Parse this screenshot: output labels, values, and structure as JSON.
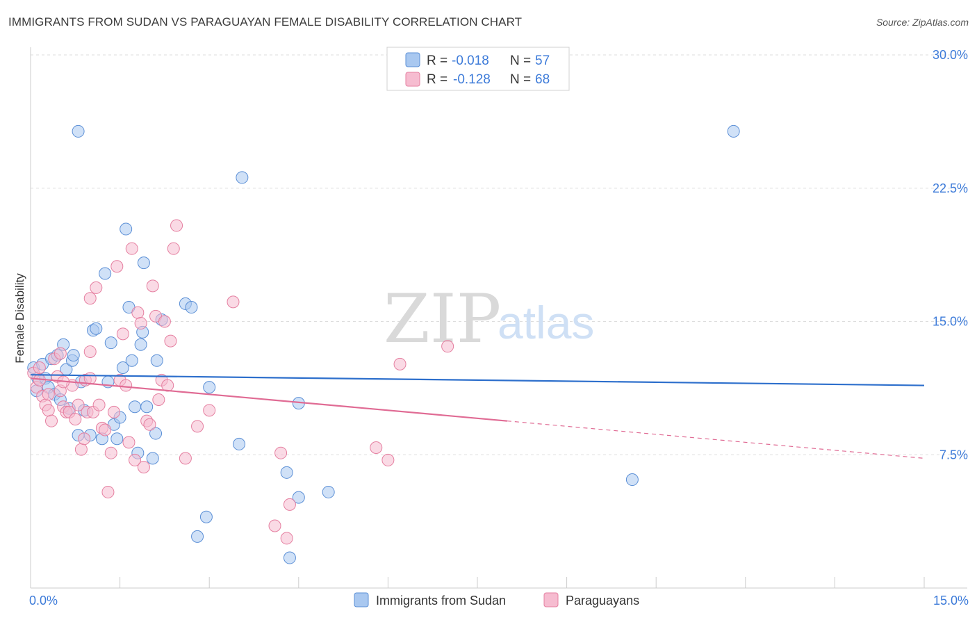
{
  "title": "IMMIGRANTS FROM SUDAN VS PARAGUAYAN FEMALE DISABILITY CORRELATION CHART",
  "source": "Source: ZipAtlas.com",
  "watermark": {
    "zip": "ZIP",
    "atlas": "atlas"
  },
  "legend": {
    "rows": [
      {
        "r_label": "R = ",
        "r_value": "-0.018",
        "n_label": "N = ",
        "n_value": "57",
        "color": "#a9c8f0",
        "stroke": "#5b8fd6"
      },
      {
        "r_label": "R = ",
        "r_value": "-0.128",
        "n_label": "N = ",
        "n_value": "68",
        "color": "#f6bcd0",
        "stroke": "#e57fa0"
      }
    ]
  },
  "bottom_legend": [
    {
      "label": "Immigrants from Sudan",
      "color": "#a9c8f0",
      "stroke": "#5b8fd6"
    },
    {
      "label": "Paraguayans",
      "color": "#f6bcd0",
      "stroke": "#e57fa0"
    }
  ],
  "chart_data": {
    "type": "scatter",
    "ylabel": "Female Disability",
    "xlim": [
      0,
      15
    ],
    "ylim": [
      0,
      30
    ],
    "x_tick_labels": [
      "0.0%",
      "15.0%"
    ],
    "y_ticks": [
      {
        "value": 7.5,
        "label": "7.5%"
      },
      {
        "value": 15,
        "label": "15.0%"
      },
      {
        "value": 22.5,
        "label": "22.5%"
      },
      {
        "value": 30,
        "label": "30.0%"
      }
    ],
    "series": [
      {
        "name": "Immigrants from Sudan",
        "color": "#a9c8f0",
        "stroke": "#5b8fd6",
        "trend": {
          "x0": 0,
          "y0": 12.0,
          "x1": 15,
          "y1": 11.4,
          "solid_until": 15,
          "color": "#2d6fcc"
        },
        "points": [
          [
            0.05,
            12.4
          ],
          [
            0.1,
            11.1
          ],
          [
            0.12,
            11.8
          ],
          [
            0.2,
            12.6
          ],
          [
            0.25,
            11.8
          ],
          [
            0.3,
            11.3
          ],
          [
            0.35,
            12.9
          ],
          [
            0.4,
            10.9
          ],
          [
            0.45,
            13.1
          ],
          [
            0.5,
            10.6
          ],
          [
            0.55,
            13.7
          ],
          [
            0.6,
            12.3
          ],
          [
            0.65,
            10.1
          ],
          [
            0.7,
            12.8
          ],
          [
            0.72,
            13.1
          ],
          [
            0.8,
            8.6
          ],
          [
            0.85,
            11.6
          ],
          [
            0.9,
            10.0
          ],
          [
            1.0,
            8.6
          ],
          [
            1.05,
            14.5
          ],
          [
            1.1,
            14.6
          ],
          [
            1.2,
            8.4
          ],
          [
            1.25,
            17.7
          ],
          [
            1.3,
            11.6
          ],
          [
            1.35,
            13.8
          ],
          [
            1.4,
            9.2
          ],
          [
            1.45,
            8.4
          ],
          [
            1.5,
            9.6
          ],
          [
            1.55,
            12.4
          ],
          [
            1.6,
            20.2
          ],
          [
            1.65,
            15.8
          ],
          [
            1.7,
            12.8
          ],
          [
            1.75,
            10.2
          ],
          [
            1.8,
            7.6
          ],
          [
            1.85,
            13.7
          ],
          [
            1.88,
            14.4
          ],
          [
            1.9,
            18.3
          ],
          [
            1.95,
            10.2
          ],
          [
            2.05,
            7.3
          ],
          [
            2.1,
            8.7
          ],
          [
            2.12,
            12.8
          ],
          [
            2.2,
            15.1
          ],
          [
            2.6,
            16.0
          ],
          [
            2.7,
            15.8
          ],
          [
            2.8,
            2.9
          ],
          [
            2.95,
            4.0
          ],
          [
            3.0,
            11.3
          ],
          [
            3.5,
            8.1
          ],
          [
            3.55,
            23.1
          ],
          [
            4.3,
            6.5
          ],
          [
            4.35,
            1.7
          ],
          [
            4.5,
            5.1
          ],
          [
            4.5,
            10.4
          ],
          [
            5.0,
            5.4
          ],
          [
            0.8,
            25.7
          ],
          [
            10.1,
            6.1
          ],
          [
            11.8,
            25.7
          ]
        ]
      },
      {
        "name": "Paraguayans",
        "color": "#f6bcd0",
        "stroke": "#e57fa0",
        "trend": {
          "x0": 0,
          "y0": 11.8,
          "x1": 15,
          "y1": 7.3,
          "solid_until": 8.0,
          "color": "#e06b94"
        },
        "points": [
          [
            0.05,
            12.1
          ],
          [
            0.1,
            11.3
          ],
          [
            0.15,
            11.7
          ],
          [
            0.2,
            10.8
          ],
          [
            0.25,
            10.3
          ],
          [
            0.3,
            10.0
          ],
          [
            0.35,
            9.4
          ],
          [
            0.4,
            12.9
          ],
          [
            0.45,
            11.9
          ],
          [
            0.5,
            11.1
          ],
          [
            0.55,
            10.2
          ],
          [
            0.6,
            9.9
          ],
          [
            0.65,
            9.9
          ],
          [
            0.7,
            11.4
          ],
          [
            0.75,
            9.5
          ],
          [
            0.8,
            10.3
          ],
          [
            0.85,
            7.8
          ],
          [
            0.9,
            8.4
          ],
          [
            0.92,
            11.7
          ],
          [
            0.95,
            9.9
          ],
          [
            1.0,
            16.3
          ],
          [
            1.05,
            9.9
          ],
          [
            1.1,
            16.9
          ],
          [
            1.15,
            10.3
          ],
          [
            1.2,
            9.0
          ],
          [
            1.25,
            8.9
          ],
          [
            1.3,
            5.4
          ],
          [
            1.35,
            7.6
          ],
          [
            1.4,
            9.9
          ],
          [
            1.45,
            18.1
          ],
          [
            1.5,
            11.7
          ],
          [
            1.55,
            14.3
          ],
          [
            1.6,
            11.4
          ],
          [
            1.65,
            8.2
          ],
          [
            1.7,
            19.1
          ],
          [
            1.75,
            7.2
          ],
          [
            1.8,
            15.5
          ],
          [
            1.85,
            14.9
          ],
          [
            1.9,
            6.8
          ],
          [
            1.95,
            9.4
          ],
          [
            2.0,
            9.2
          ],
          [
            2.05,
            17.0
          ],
          [
            2.1,
            15.3
          ],
          [
            2.15,
            10.6
          ],
          [
            2.2,
            11.7
          ],
          [
            2.25,
            15.0
          ],
          [
            2.3,
            11.4
          ],
          [
            2.35,
            13.9
          ],
          [
            2.4,
            19.1
          ],
          [
            2.45,
            20.4
          ],
          [
            2.6,
            7.3
          ],
          [
            2.8,
            9.1
          ],
          [
            3.0,
            10.0
          ],
          [
            3.4,
            16.1
          ],
          [
            4.1,
            3.5
          ],
          [
            4.2,
            7.6
          ],
          [
            4.3,
            2.8
          ],
          [
            4.35,
            4.7
          ],
          [
            5.8,
            7.9
          ],
          [
            6.0,
            7.2
          ],
          [
            6.2,
            12.6
          ],
          [
            7.0,
            13.6
          ],
          [
            0.5,
            13.2
          ],
          [
            0.55,
            11.6
          ],
          [
            1.0,
            11.8
          ],
          [
            0.3,
            10.9
          ],
          [
            0.15,
            12.4
          ],
          [
            1.0,
            13.3
          ]
        ]
      }
    ]
  }
}
